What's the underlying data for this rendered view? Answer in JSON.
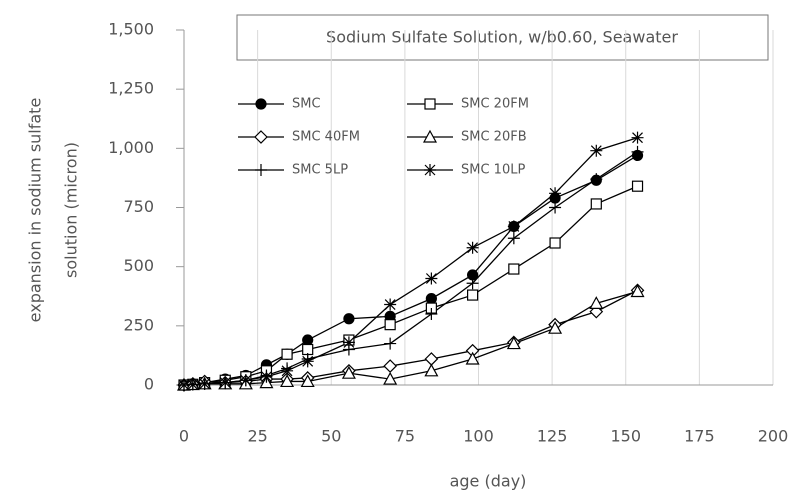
{
  "chart_data": {
    "type": "line",
    "title": "Sodium Sulfate Solution, w/b0.60, Seawater",
    "x_label": "age (day)",
    "y_label": [
      "expansion in sodium sulfate",
      "solution (micron)"
    ],
    "x": [
      0,
      3,
      7,
      14,
      21,
      28,
      35,
      42,
      56,
      70,
      84,
      98,
      112,
      126,
      140,
      154
    ],
    "series": [
      {
        "name": "SMC",
        "color": "#000000",
        "marker": "circle-filled",
        "values": [
          0,
          5,
          10,
          25,
          40,
          85,
          130,
          190,
          280,
          290,
          365,
          465,
          670,
          790,
          865,
          970
        ]
      },
      {
        "name": "SMC 20FM",
        "color": "#000000",
        "marker": "square",
        "values": [
          0,
          3,
          10,
          20,
          35,
          60,
          130,
          150,
          190,
          255,
          325,
          380,
          490,
          600,
          765,
          840
        ]
      },
      {
        "name": "SMC 40FM",
        "color": "#000000",
        "marker": "diamond",
        "values": [
          0,
          5,
          15,
          10,
          15,
          25,
          25,
          30,
          60,
          80,
          110,
          145,
          180,
          255,
          310,
          400
        ]
      },
      {
        "name": "SMC 20FB",
        "color": "#000000",
        "marker": "triangle",
        "values": [
          0,
          2,
          5,
          5,
          5,
          10,
          15,
          15,
          50,
          25,
          60,
          110,
          175,
          240,
          345,
          395
        ]
      },
      {
        "name": "SMC 5LP",
        "color": "#000000",
        "marker": "plus",
        "values": [
          0,
          2,
          5,
          10,
          20,
          40,
          70,
          110,
          150,
          175,
          300,
          430,
          620,
          750,
          870,
          985
        ]
      },
      {
        "name": "SMC 10LP",
        "color": "#000000",
        "marker": "asterisk",
        "values": [
          0,
          2,
          5,
          10,
          20,
          35,
          60,
          100,
          180,
          340,
          450,
          580,
          670,
          810,
          990,
          1045
        ]
      }
    ],
    "xlim": [
      0,
      200
    ],
    "xticks": [
      0,
      25,
      50,
      75,
      100,
      125,
      150,
      175,
      200
    ],
    "ylim": [
      0,
      1500
    ],
    "yticks": [
      0,
      250,
      500,
      750,
      {
        "value": 1000,
        "label": "1,000"
      },
      {
        "value": 1250,
        "label": "1,250"
      },
      {
        "value": 1500,
        "label": "1,500"
      }
    ],
    "grid": true
  }
}
